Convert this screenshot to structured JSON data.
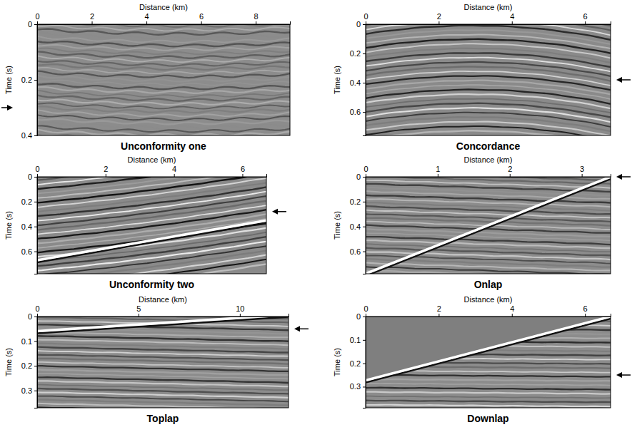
{
  "chart_data": [
    {
      "type": "image",
      "title": "Unconformity one",
      "x_label": "Distance (km)",
      "y_label": "Time (s)",
      "xlim": [
        0,
        9.25
      ],
      "xticks": [
        0,
        2,
        4,
        6,
        8
      ],
      "ylim": [
        0,
        0.4
      ],
      "yticks": [
        0,
        0.2,
        0.4
      ],
      "arrow": 0.3
    },
    {
      "type": "image",
      "title": "Concordance",
      "x_label": "Distance (km)",
      "y_label": "Time (s)",
      "xlim": [
        0,
        6.7
      ],
      "xticks": [
        0,
        2,
        4,
        6
      ],
      "ylim": [
        0,
        0.76
      ],
      "yticks": [
        0,
        0.2,
        0.4,
        0.6
      ],
      "arrow": 0.38
    },
    {
      "type": "image",
      "title": "Unconformity two",
      "x_label": "Distance (km)",
      "y_label": "Time (s)",
      "xlim": [
        0,
        6.7
      ],
      "xticks": [
        0,
        2,
        4,
        6
      ],
      "ylim": [
        0,
        0.78
      ],
      "yticks": [
        0,
        0.2,
        0.4,
        0.6
      ],
      "arrow": 0.28
    },
    {
      "type": "image",
      "title": "Onlap",
      "x_label": "Distance (km)",
      "y_label": "Time (s)",
      "xlim": [
        0,
        3.4
      ],
      "xticks": [
        0,
        1,
        2,
        3
      ],
      "ylim": [
        0,
        0.78
      ],
      "yticks": [
        0,
        0.2,
        0.4,
        0.6
      ],
      "arrow": 0
    },
    {
      "type": "image",
      "title": "Toplap",
      "x_label": "Distance (km)",
      "y_label": "Time (s)",
      "xlim": [
        0,
        12.4
      ],
      "xticks": [
        0,
        5,
        10
      ],
      "ylim": [
        0,
        0.37
      ],
      "yticks": [
        0,
        0.1,
        0.2,
        0.3
      ],
      "arrow": 0.05
    },
    {
      "type": "image",
      "title": "Downlap",
      "x_label": "Distance (km)",
      "y_label": "Time (s)",
      "xlim": [
        0,
        6.7
      ],
      "xticks": [
        0,
        2,
        4,
        6
      ],
      "ylim": [
        0,
        0.39
      ],
      "yticks": [
        0,
        0.1,
        0.2,
        0.3
      ],
      "arrow": 0.25
    }
  ]
}
